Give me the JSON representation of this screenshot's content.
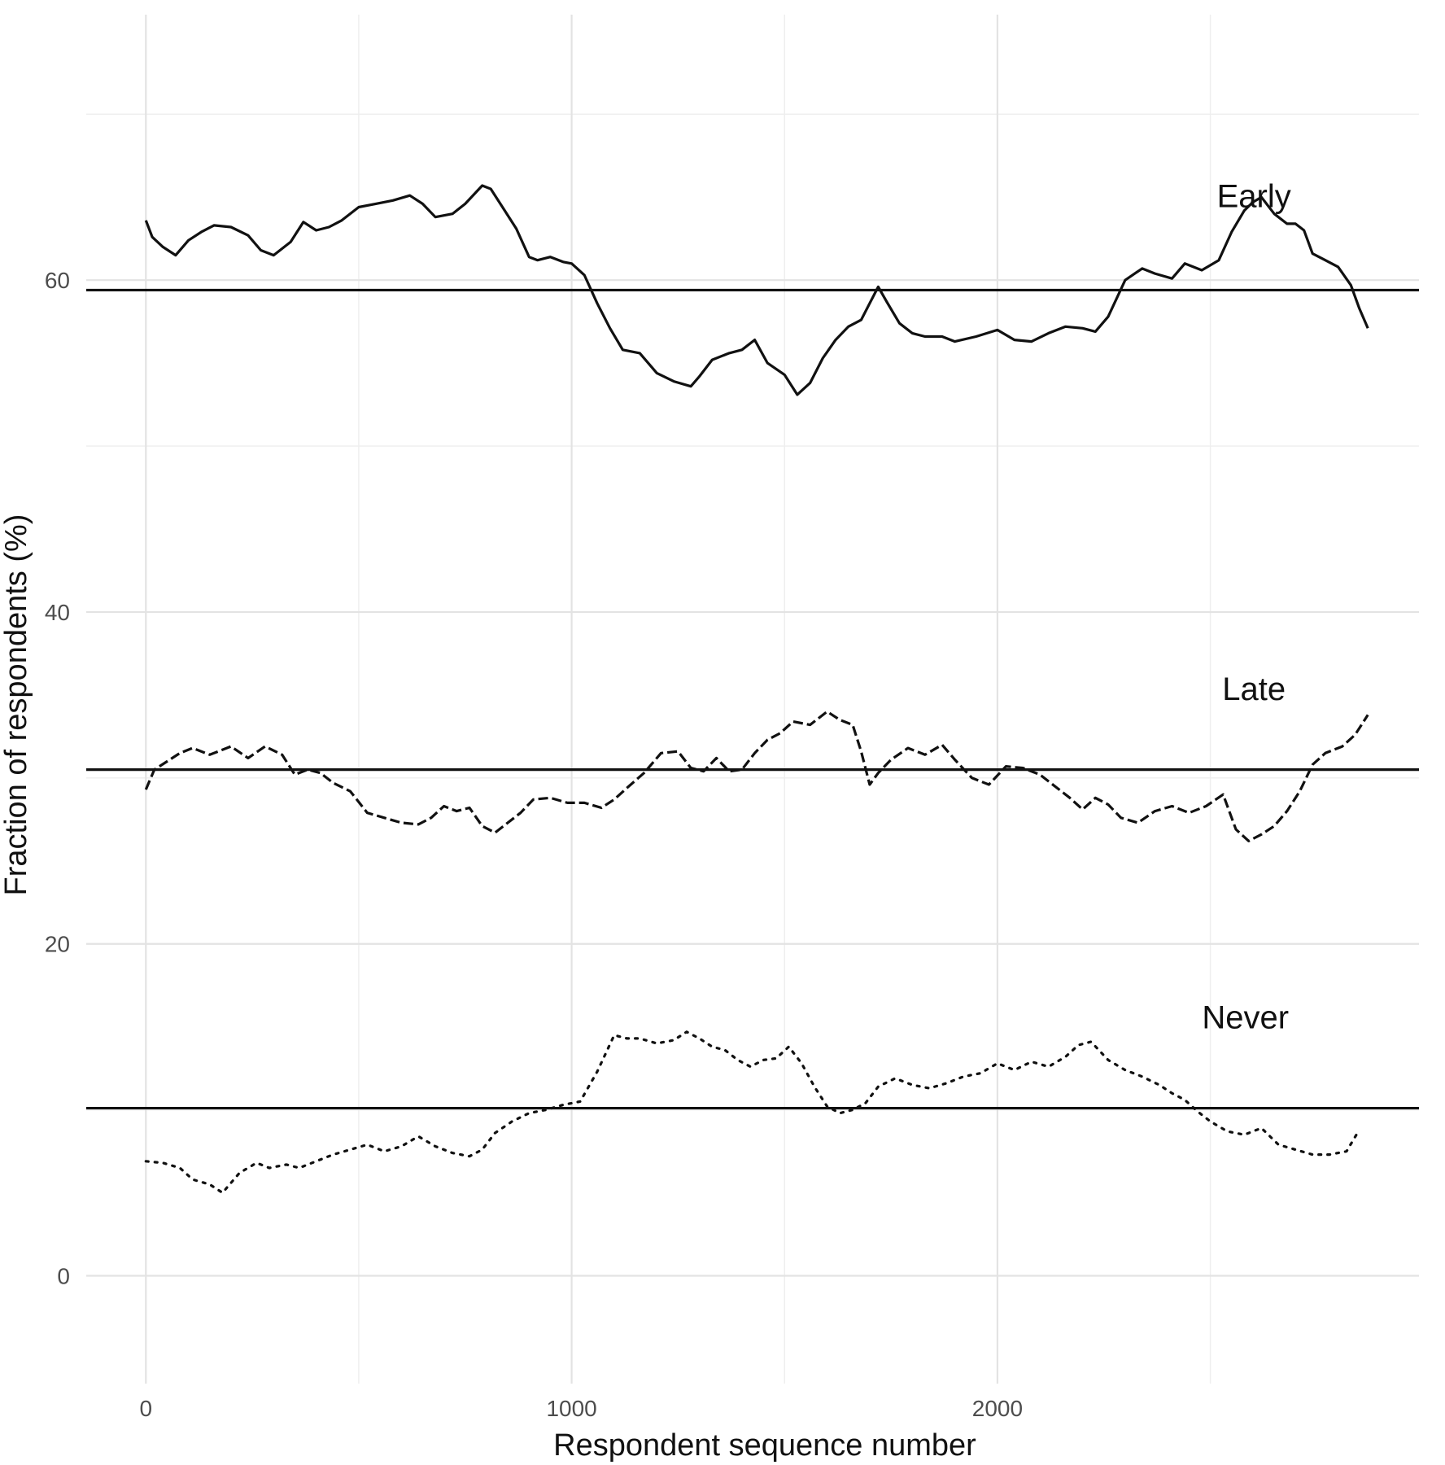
{
  "chart_data": {
    "type": "line",
    "xlabel": "Respondent sequence number",
    "ylabel": "Fraction of respondents (%)",
    "xlim": [
      -140,
      2990
    ],
    "ylim": [
      -6.5,
      76
    ],
    "x_ticks": [
      0,
      1000,
      2000
    ],
    "x_minor_ticks": [
      500,
      1500,
      2500
    ],
    "y_ticks": [
      0,
      20,
      40,
      60
    ],
    "y_minor_ticks": [
      10,
      30,
      50,
      70
    ],
    "grid": true,
    "series": [
      {
        "name": "Early",
        "line_style": "solid",
        "reference_value": 59.4,
        "x": [
          0,
          15,
          40,
          70,
          100,
          130,
          160,
          200,
          240,
          270,
          300,
          340,
          370,
          400,
          430,
          460,
          500,
          540,
          580,
          620,
          650,
          680,
          720,
          750,
          790,
          810,
          840,
          870,
          900,
          920,
          950,
          980,
          1000,
          1030,
          1060,
          1090,
          1120,
          1160,
          1200,
          1240,
          1280,
          1300,
          1330,
          1370,
          1400,
          1430,
          1460,
          1500,
          1530,
          1560,
          1590,
          1620,
          1650,
          1680,
          1700,
          1720,
          1740,
          1770,
          1800,
          1830,
          1870,
          1900,
          1950,
          2000,
          2040,
          2080,
          2120,
          2160,
          2200,
          2230,
          2260,
          2300,
          2340,
          2370,
          2410,
          2440,
          2480,
          2520,
          2550,
          2580,
          2600,
          2620,
          2650,
          2680,
          2700,
          2720,
          2740,
          2770,
          2800,
          2830,
          2850,
          2870
        ],
        "values": [
          63.6,
          62.6,
          62.0,
          61.5,
          62.4,
          62.9,
          63.3,
          63.2,
          62.7,
          61.8,
          61.5,
          62.3,
          63.5,
          63.0,
          63.2,
          63.6,
          64.4,
          64.6,
          64.8,
          65.1,
          64.6,
          63.8,
          64.0,
          64.6,
          65.7,
          65.5,
          64.3,
          63.1,
          61.4,
          61.2,
          61.4,
          61.1,
          61.0,
          60.3,
          58.6,
          57.1,
          55.8,
          55.6,
          54.4,
          53.9,
          53.6,
          54.2,
          55.2,
          55.6,
          55.8,
          56.4,
          55.0,
          54.3,
          53.1,
          53.8,
          55.3,
          56.4,
          57.2,
          57.6,
          58.6,
          59.6,
          58.7,
          57.4,
          56.8,
          56.6,
          56.6,
          56.3,
          56.6,
          57.0,
          56.4,
          56.3,
          56.8,
          57.2,
          57.1,
          56.9,
          57.8,
          60.0,
          60.7,
          60.4,
          60.1,
          61.0,
          60.6,
          61.2,
          62.9,
          64.2,
          64.7,
          65.0,
          64.0,
          63.4,
          63.4,
          63.0,
          61.6,
          61.2,
          60.8,
          59.7,
          58.3,
          57.1
        ]
      },
      {
        "name": "Late",
        "line_style": "dashed",
        "reference_value": 30.5,
        "x": [
          0,
          20,
          50,
          80,
          110,
          150,
          200,
          240,
          280,
          320,
          350,
          380,
          410,
          440,
          480,
          520,
          560,
          600,
          640,
          670,
          700,
          730,
          760,
          790,
          820,
          850,
          880,
          910,
          950,
          990,
          1030,
          1070,
          1100,
          1130,
          1170,
          1210,
          1250,
          1280,
          1310,
          1340,
          1370,
          1400,
          1430,
          1460,
          1490,
          1520,
          1560,
          1600,
          1630,
          1660,
          1680,
          1700,
          1720,
          1750,
          1790,
          1830,
          1870,
          1900,
          1940,
          1980,
          2020,
          2060,
          2100,
          2140,
          2170,
          2200,
          2230,
          2260,
          2290,
          2330,
          2370,
          2410,
          2450,
          2490,
          2530,
          2560,
          2590,
          2620,
          2650,
          2680,
          2710,
          2740,
          2770,
          2810,
          2840,
          2870
        ],
        "values": [
          29.3,
          30.5,
          31.0,
          31.5,
          31.8,
          31.4,
          31.9,
          31.2,
          31.9,
          31.4,
          30.2,
          30.5,
          30.3,
          29.7,
          29.2,
          27.9,
          27.6,
          27.3,
          27.2,
          27.6,
          28.3,
          28.0,
          28.2,
          27.1,
          26.7,
          27.3,
          27.9,
          28.7,
          28.8,
          28.5,
          28.5,
          28.2,
          28.7,
          29.4,
          30.3,
          31.5,
          31.6,
          30.6,
          30.4,
          31.2,
          30.4,
          30.5,
          31.5,
          32.3,
          32.7,
          33.4,
          33.2,
          34.0,
          33.5,
          33.2,
          31.6,
          29.6,
          30.3,
          31.1,
          31.8,
          31.4,
          32.0,
          31.1,
          30.0,
          29.6,
          30.7,
          30.6,
          30.2,
          29.4,
          28.8,
          28.1,
          28.8,
          28.4,
          27.6,
          27.3,
          28.0,
          28.3,
          27.9,
          28.3,
          29.0,
          26.9,
          26.2,
          26.6,
          27.1,
          28.0,
          29.2,
          30.8,
          31.5,
          31.9,
          32.6,
          33.8
        ]
      },
      {
        "name": "Never",
        "line_style": "dotted",
        "reference_value": 10.1,
        "x": [
          0,
          40,
          80,
          110,
          150,
          180,
          220,
          260,
          290,
          330,
          360,
          400,
          440,
          480,
          520,
          560,
          600,
          640,
          680,
          720,
          760,
          790,
          820,
          860,
          900,
          940,
          980,
          1020,
          1060,
          1100,
          1130,
          1160,
          1200,
          1240,
          1270,
          1300,
          1330,
          1360,
          1390,
          1420,
          1450,
          1480,
          1510,
          1540,
          1570,
          1600,
          1630,
          1660,
          1690,
          1720,
          1760,
          1800,
          1840,
          1880,
          1920,
          1960,
          2000,
          2040,
          2080,
          2120,
          2160,
          2190,
          2220,
          2260,
          2300,
          2340,
          2380,
          2410,
          2440,
          2470,
          2500,
          2540,
          2580,
          2620,
          2660,
          2700,
          2740,
          2780,
          2820,
          2850
        ],
        "values": [
          6.9,
          6.8,
          6.5,
          5.8,
          5.5,
          5.0,
          6.2,
          6.8,
          6.5,
          6.7,
          6.5,
          6.9,
          7.3,
          7.6,
          7.9,
          7.5,
          7.8,
          8.4,
          7.8,
          7.4,
          7.2,
          7.6,
          8.6,
          9.3,
          9.8,
          10.0,
          10.3,
          10.5,
          12.3,
          14.5,
          14.3,
          14.3,
          14.0,
          14.2,
          14.7,
          14.3,
          13.8,
          13.6,
          13.0,
          12.6,
          13.0,
          13.1,
          13.8,
          12.8,
          11.4,
          10.2,
          9.8,
          10.0,
          10.4,
          11.4,
          11.9,
          11.5,
          11.3,
          11.6,
          12.0,
          12.2,
          12.8,
          12.4,
          12.9,
          12.6,
          13.2,
          13.9,
          14.1,
          13.0,
          12.4,
          12.0,
          11.5,
          11.0,
          10.6,
          9.9,
          9.3,
          8.7,
          8.5,
          8.9,
          7.9,
          7.6,
          7.3,
          7.3,
          7.5,
          8.8
        ]
      }
    ]
  }
}
